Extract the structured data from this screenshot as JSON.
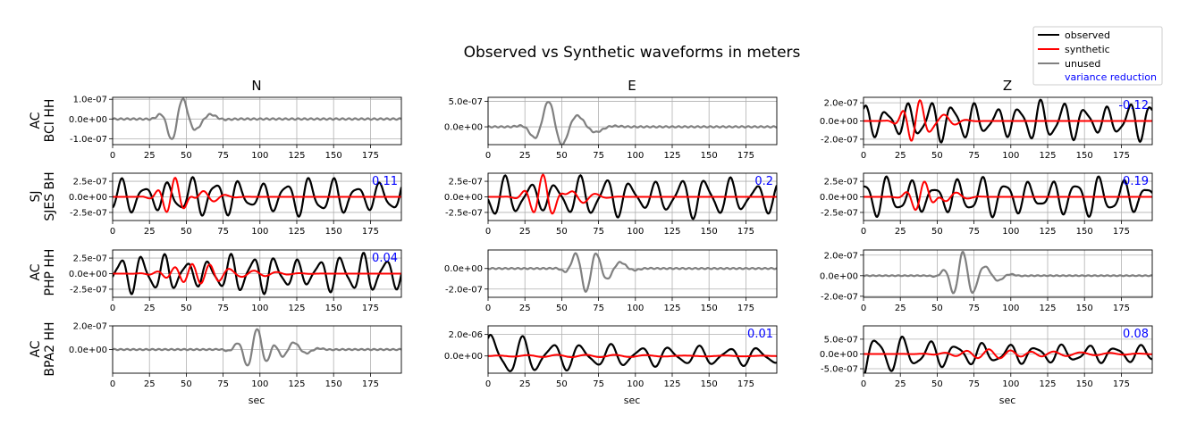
{
  "figure": {
    "title": "Observed vs Synthetic waveforms in meters",
    "columns": [
      "N",
      "E",
      "Z"
    ],
    "rows": [
      {
        "network": "AC",
        "station": "BCI HH"
      },
      {
        "network": "SJ",
        "station": "SJES BH"
      },
      {
        "network": "AC",
        "station": "PHP HH"
      },
      {
        "network": "AC",
        "station": "BPA2 HH"
      }
    ],
    "xlabel": "sec",
    "legend": {
      "placement": "top-right",
      "entries": [
        {
          "label": "observed",
          "color": "#000000",
          "kind": "line"
        },
        {
          "label": "synthetic",
          "color": "#ff0000",
          "kind": "line"
        },
        {
          "label": "unused",
          "color": "#808080",
          "kind": "line"
        },
        {
          "label": "variance reduction",
          "color": "#0000ff",
          "kind": "text"
        }
      ]
    }
  },
  "chart_data": {
    "type": "line",
    "x_range": [
      0,
      196
    ],
    "x_ticks": [
      0,
      25,
      50,
      75,
      100,
      125,
      150,
      175
    ],
    "grid": true,
    "panels": [
      {
        "row": 0,
        "col": 0,
        "used": false,
        "vr": "",
        "ylim": [
          -1.3e-07,
          1.1e-07
        ],
        "yticks": [
          {
            "v": 1e-07,
            "label": "1.0e-07"
          },
          {
            "v": 0,
            "label": "0.0e+00"
          },
          {
            "v": -1e-07,
            "label": "-1.0e-07"
          }
        ],
        "obs": {
          "amp": 1.2e-07,
          "center": 43,
          "width": 9,
          "period": 18,
          "noise": 0.05,
          "seed": 1
        }
      },
      {
        "row": 0,
        "col": 1,
        "used": false,
        "vr": "",
        "ylim": [
          -3.5e-07,
          5.8e-07
        ],
        "yticks": [
          {
            "v": 5e-07,
            "label": "5.0e-07"
          },
          {
            "v": 0,
            "label": "0.0e+00"
          }
        ],
        "obs": {
          "amp": 5.2e-07,
          "center": 42,
          "width": 12,
          "period": 22,
          "noise": 0.04,
          "seed": 2
        }
      },
      {
        "row": 0,
        "col": 2,
        "used": true,
        "vr": "-0.12",
        "ylim": [
          -2.6e-07,
          2.6e-07
        ],
        "yticks": [
          {
            "v": 2e-07,
            "label": "2.0e-07"
          },
          {
            "v": 0,
            "label": "0.0e+00"
          },
          {
            "v": -2e-07,
            "label": "-2.0e-07"
          }
        ],
        "obs": {
          "amp": 2.4e-07,
          "period": 15,
          "seed": 3
        },
        "syn": {
          "amp": 2.2e-07,
          "center": 35,
          "width": 10,
          "period": 12,
          "seed": 4
        }
      },
      {
        "row": 1,
        "col": 0,
        "used": true,
        "vr": "0.11",
        "ylim": [
          -3.8e-07,
          3.8e-07
        ],
        "yticks": [
          {
            "v": 2.5e-07,
            "label": "2.5e-07"
          },
          {
            "v": 0,
            "label": "0.0e+00"
          },
          {
            "v": -2.5e-07,
            "label": "-2.5e-07"
          }
        ],
        "obs": {
          "amp": 3.4e-07,
          "period": 16,
          "seed": 5
        },
        "syn": {
          "amp": 3e-07,
          "center": 42,
          "width": 11,
          "period": 12,
          "seed": 6
        }
      },
      {
        "row": 1,
        "col": 1,
        "used": true,
        "vr": "0.2",
        "ylim": [
          -3.8e-07,
          3.8e-07
        ],
        "yticks": [
          {
            "v": 2.5e-07,
            "label": "2.5e-07"
          },
          {
            "v": 0,
            "label": "0.0e+00"
          },
          {
            "v": -2.5e-07,
            "label": "-2.5e-07"
          }
        ],
        "obs": {
          "amp": 3.6e-07,
          "period": 17,
          "seed": 7
        },
        "syn": {
          "amp": 3.4e-07,
          "center": 38,
          "width": 12,
          "period": 13,
          "seed": 8
        }
      },
      {
        "row": 1,
        "col": 2,
        "used": true,
        "vr": "0.19",
        "ylim": [
          -3.8e-07,
          3.8e-07
        ],
        "yticks": [
          {
            "v": 2.5e-07,
            "label": "2.5e-07"
          },
          {
            "v": 0,
            "label": "0.0e+00"
          },
          {
            "v": -2.5e-07,
            "label": "-2.5e-07"
          }
        ],
        "obs": {
          "amp": 3.5e-07,
          "period": 16,
          "seed": 9
        },
        "syn": {
          "amp": 2.6e-07,
          "center": 40,
          "width": 10,
          "period": 13,
          "seed": 10
        }
      },
      {
        "row": 2,
        "col": 0,
        "used": true,
        "vr": "0.04",
        "ylim": [
          -3.8e-07,
          3.8e-07
        ],
        "yticks": [
          {
            "v": 2.5e-07,
            "label": "2.5e-07"
          },
          {
            "v": 0,
            "label": "0.0e+00"
          },
          {
            "v": -2.5e-07,
            "label": "-2.5e-07"
          }
        ],
        "obs": {
          "amp": 3.4e-07,
          "period": 15,
          "seed": 11
        },
        "syn": {
          "amp": 1.6e-07,
          "center": 55,
          "width": 20,
          "period": 12,
          "seed": 12
        }
      },
      {
        "row": 2,
        "col": 1,
        "used": false,
        "vr": "",
        "ylim": [
          -2.8e-07,
          1.8e-07
        ],
        "yticks": [
          {
            "v": 0,
            "label": "0.0e+00"
          },
          {
            "v": -2e-07,
            "label": "-2.0e-07"
          }
        ],
        "obs": {
          "amp": 2.4e-07,
          "center": 66,
          "width": 10,
          "period": 16,
          "noise": 0.04,
          "seed": 13
        }
      },
      {
        "row": 2,
        "col": 2,
        "used": false,
        "vr": "",
        "ylim": [
          -2.1e-07,
          2.5e-07
        ],
        "yticks": [
          {
            "v": 2e-07,
            "label": "2.0e-07"
          },
          {
            "v": 0,
            "label": "0.0e+00"
          },
          {
            "v": -2e-07,
            "label": "-2.0e-07"
          }
        ],
        "obs": {
          "amp": 2.2e-07,
          "center": 66,
          "width": 10,
          "period": 14,
          "noise": 0.03,
          "seed": 14
        }
      },
      {
        "row": 3,
        "col": 0,
        "used": false,
        "vr": "",
        "ylim": [
          -2e-07,
          2e-07
        ],
        "yticks": [
          {
            "v": 2e-07,
            "label": "2.0e-07"
          },
          {
            "v": 0,
            "label": "0.0e+00"
          }
        ],
        "obs": {
          "amp": 1.9e-07,
          "center": 98,
          "width": 12,
          "period": 14,
          "noise": 0.04,
          "seed": 15
        }
      },
      {
        "row": 3,
        "col": 1,
        "used": true,
        "vr": "0.01",
        "ylim": [
          -1.6e-06,
          2.8e-06
        ],
        "yticks": [
          {
            "v": 2e-06,
            "label": "2.0e-06"
          },
          {
            "v": 0,
            "label": "0.0e+00"
          }
        ],
        "obs": {
          "amp": 2.6e-06,
          "period": 20,
          "decay": true,
          "seed": 16
        },
        "syn": {
          "amp": 1.2e-07,
          "center": 60,
          "width": 50,
          "period": 20,
          "seed": 17
        }
      },
      {
        "row": 3,
        "col": 2,
        "used": true,
        "vr": "0.08",
        "ylim": [
          -6.5e-07,
          9.5e-07
        ],
        "yticks": [
          {
            "v": 5e-07,
            "label": "5.0e-07"
          },
          {
            "v": 0,
            "label": "0.0e+00"
          },
          {
            "v": -5e-07,
            "label": "-5.0e-07"
          }
        ],
        "obs": {
          "amp": 8.8e-07,
          "period": 18,
          "decay": true,
          "seed": 18
        },
        "syn": {
          "amp": 1.6e-07,
          "center": 90,
          "width": 30,
          "period": 15,
          "seed": 19
        }
      }
    ]
  }
}
